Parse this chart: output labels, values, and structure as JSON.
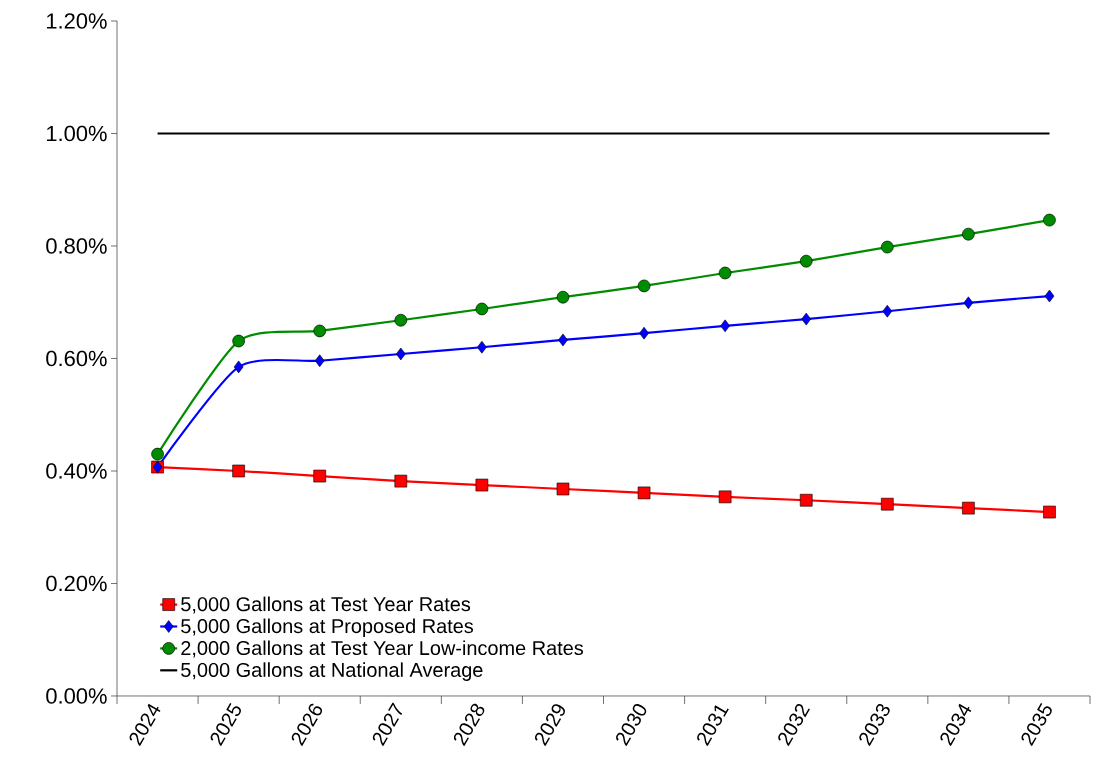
{
  "chart_data": {
    "type": "line",
    "categories": [
      "2024",
      "2025",
      "2026",
      "2027",
      "2028",
      "2029",
      "2030",
      "2031",
      "2032",
      "2033",
      "2034",
      "2035"
    ],
    "series": [
      {
        "name": "5,000 Gallons at Test Year Rates",
        "color": "#ff0000",
        "marker": "square",
        "values": [
          0.407,
          0.4,
          0.391,
          0.382,
          0.375,
          0.368,
          0.361,
          0.354,
          0.348,
          0.341,
          0.334,
          0.327
        ]
      },
      {
        "name": "5,000 Gallons at Proposed Rates",
        "color": "#0000ff",
        "marker": "diamond",
        "values": [
          0.407,
          0.585,
          0.596,
          0.608,
          0.62,
          0.633,
          0.645,
          0.658,
          0.67,
          0.684,
          0.699,
          0.711
        ]
      },
      {
        "name": "2,000 Gallons at Test Year Low-income Rates",
        "color": "#008c00",
        "marker": "circle",
        "values": [
          0.43,
          0.631,
          0.649,
          0.668,
          0.688,
          0.709,
          0.729,
          0.752,
          0.773,
          0.798,
          0.821,
          0.846
        ]
      },
      {
        "name": "5,000 Gallons at National Average",
        "color": "#000000",
        "marker": "none",
        "values": [
          1.0,
          1.0,
          1.0,
          1.0,
          1.0,
          1.0,
          1.0,
          1.0,
          1.0,
          1.0,
          1.0,
          1.0
        ]
      }
    ],
    "ylim": [
      0,
      1.2
    ],
    "yticks": [
      {
        "value": 0,
        "label": "0.00%"
      },
      {
        "value": 0.2,
        "label": "0.20%"
      },
      {
        "value": 0.4,
        "label": "0.40%"
      },
      {
        "value": 0.6,
        "label": "0.60%"
      },
      {
        "value": 0.8,
        "label": "0.80%"
      },
      {
        "value": 1.0,
        "label": "1.00%"
      },
      {
        "value": 1.2,
        "label": "1.20%"
      }
    ],
    "grid": false,
    "legend": "bottom left",
    "line_style": "solid"
  }
}
